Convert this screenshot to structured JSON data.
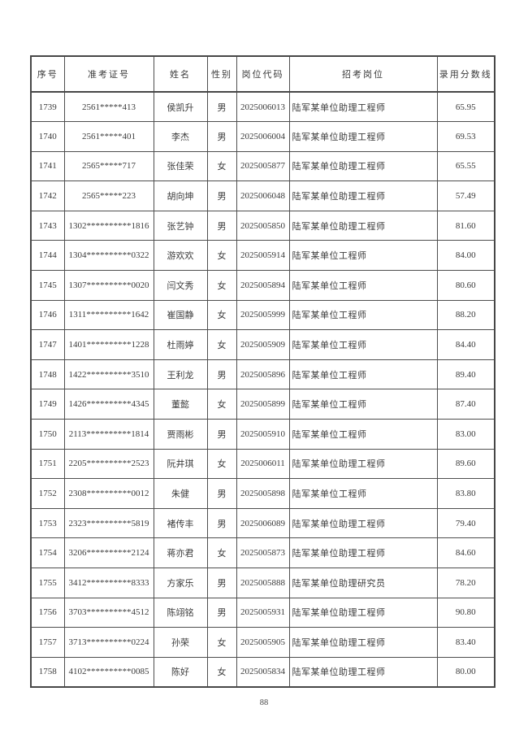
{
  "table": {
    "headers": [
      "序号",
      "准考证号",
      "姓名",
      "性别",
      "岗位代码",
      "招考岗位",
      "录用分数线"
    ],
    "rows": [
      [
        "1739",
        "2561*****413",
        "侯凯升",
        "男",
        "2025006013",
        "陆军某单位助理工程师",
        "65.95"
      ],
      [
        "1740",
        "2561*****401",
        "李杰",
        "男",
        "2025006004",
        "陆军某单位助理工程师",
        "69.53"
      ],
      [
        "1741",
        "2565*****717",
        "张佳荣",
        "女",
        "2025005877",
        "陆军某单位助理工程师",
        "65.55"
      ],
      [
        "1742",
        "2565*****223",
        "胡向坤",
        "男",
        "2025006048",
        "陆军某单位助理工程师",
        "57.49"
      ],
      [
        "1743",
        "1302**********1816",
        "张艺钟",
        "男",
        "2025005850",
        "陆军某单位助理工程师",
        "81.60"
      ],
      [
        "1744",
        "1304**********0322",
        "游欢欢",
        "女",
        "2025005914",
        "陆军某单位工程师",
        "84.00"
      ],
      [
        "1745",
        "1307**********0020",
        "闫文秀",
        "女",
        "2025005894",
        "陆军某单位工程师",
        "80.60"
      ],
      [
        "1746",
        "1311**********1642",
        "崔国静",
        "女",
        "2025005999",
        "陆军某单位工程师",
        "88.20"
      ],
      [
        "1747",
        "1401**********1228",
        "杜雨婷",
        "女",
        "2025005909",
        "陆军某单位工程师",
        "84.40"
      ],
      [
        "1748",
        "1422**********3510",
        "王利龙",
        "男",
        "2025005896",
        "陆军某单位工程师",
        "89.40"
      ],
      [
        "1749",
        "1426**********4345",
        "董懿",
        "女",
        "2025005899",
        "陆军某单位工程师",
        "87.40"
      ],
      [
        "1750",
        "2113**********1814",
        "贾雨彬",
        "男",
        "2025005910",
        "陆军某单位工程师",
        "83.00"
      ],
      [
        "1751",
        "2205**********2523",
        "阮井琪",
        "女",
        "2025006011",
        "陆军某单位助理工程师",
        "89.60"
      ],
      [
        "1752",
        "2308**********0012",
        "朱健",
        "男",
        "2025005898",
        "陆军某单位工程师",
        "83.80"
      ],
      [
        "1753",
        "2323**********5819",
        "褚传丰",
        "男",
        "2025006089",
        "陆军某单位助理工程师",
        "79.40"
      ],
      [
        "1754",
        "3206**********2124",
        "蒋亦君",
        "女",
        "2025005873",
        "陆军某单位助理工程师",
        "84.60"
      ],
      [
        "1755",
        "3412**********8333",
        "方家乐",
        "男",
        "2025005888",
        "陆军某单位助理研究员",
        "78.20"
      ],
      [
        "1756",
        "3703**********4512",
        "陈翊铭",
        "男",
        "2025005931",
        "陆军某单位助理工程师",
        "90.80"
      ],
      [
        "1757",
        "3713**********0224",
        "孙荣",
        "女",
        "2025005905",
        "陆军某单位助理工程师",
        "83.40"
      ],
      [
        "1758",
        "4102**********0085",
        "陈好",
        "女",
        "2025005834",
        "陆军某单位助理工程师",
        "80.00"
      ]
    ]
  },
  "page_number": "88"
}
